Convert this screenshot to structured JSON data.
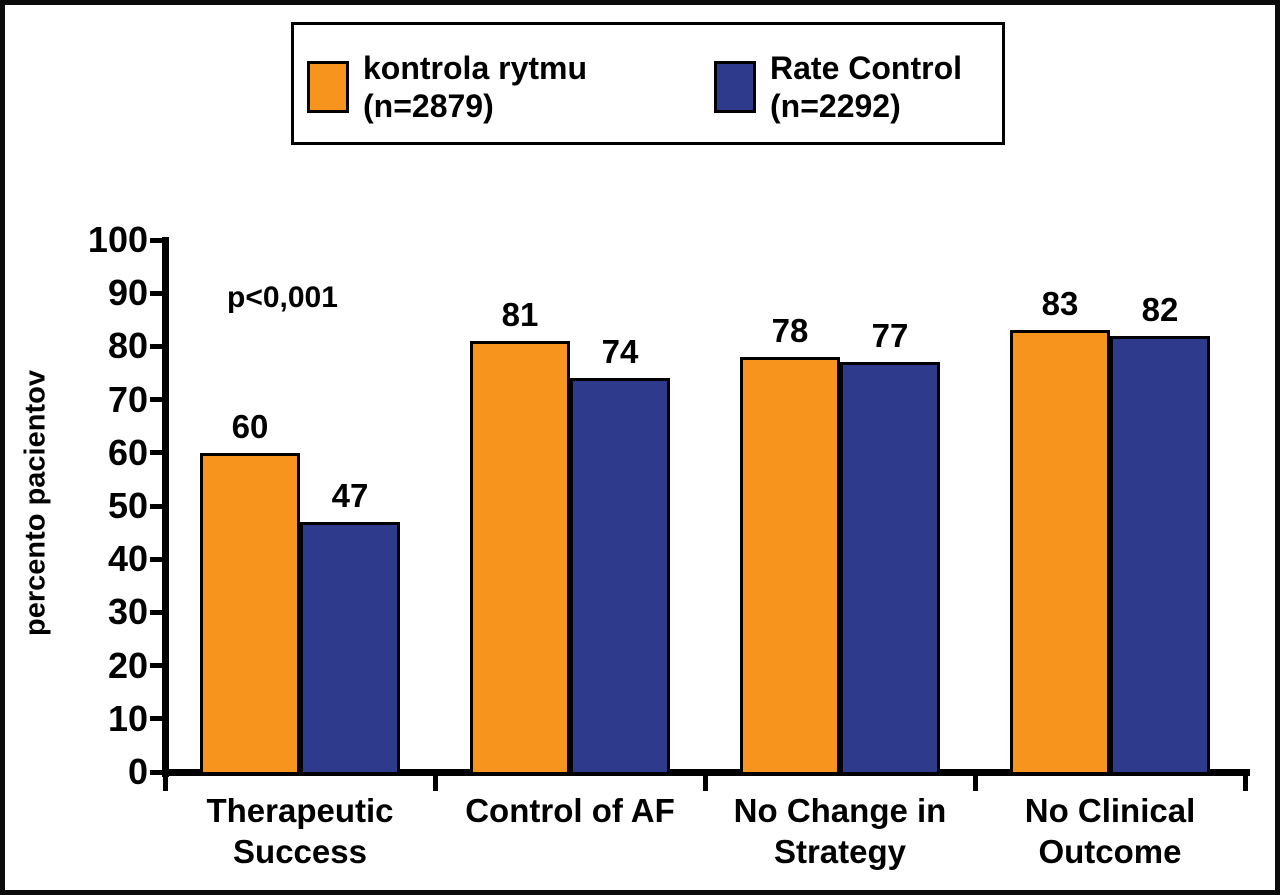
{
  "colors": {
    "rhythm_control": "#F7941E",
    "rate_control": "#2E3A8C",
    "axis": "#000000",
    "background": "#FFFFFF",
    "frame_border": "#0B0B0B"
  },
  "legend": {
    "items": [
      {
        "line1": "kontrola rytmu",
        "line2": "(n=2879)",
        "color": "#F7941E"
      },
      {
        "line1": "Rate Control",
        "line2": "(n=2292)",
        "color": "#2E3A8C"
      }
    ]
  },
  "y_axis": {
    "title": "percento pacientov",
    "ticks": [
      0,
      10,
      20,
      30,
      40,
      50,
      60,
      70,
      80,
      90,
      100
    ]
  },
  "chart_data": {
    "type": "bar",
    "categories": [
      "Therapeutic Success",
      "Control of AF",
      "No Change in Strategy",
      "No Clinical Outcome"
    ],
    "category_lines": [
      [
        "Therapeutic",
        "Success"
      ],
      [
        "Control of AF"
      ],
      [
        "No Change in",
        "Strategy"
      ],
      [
        "No Clinical",
        "Outcome"
      ]
    ],
    "series": [
      {
        "name": "kontrola rytmu (n=2879)",
        "color": "#F7941E",
        "values": [
          60,
          81,
          78,
          83
        ]
      },
      {
        "name": "Rate Control (n=2292)",
        "color": "#2E3A8C",
        "values": [
          47,
          74,
          77,
          82
        ]
      }
    ],
    "title": "",
    "xlabel": "",
    "ylabel": "percento pacientov",
    "ylim": [
      0,
      100
    ],
    "grid": false,
    "legend_position": "top",
    "annotations": [
      {
        "text": "p<0,001",
        "x_category": "Therapeutic Success"
      }
    ]
  }
}
